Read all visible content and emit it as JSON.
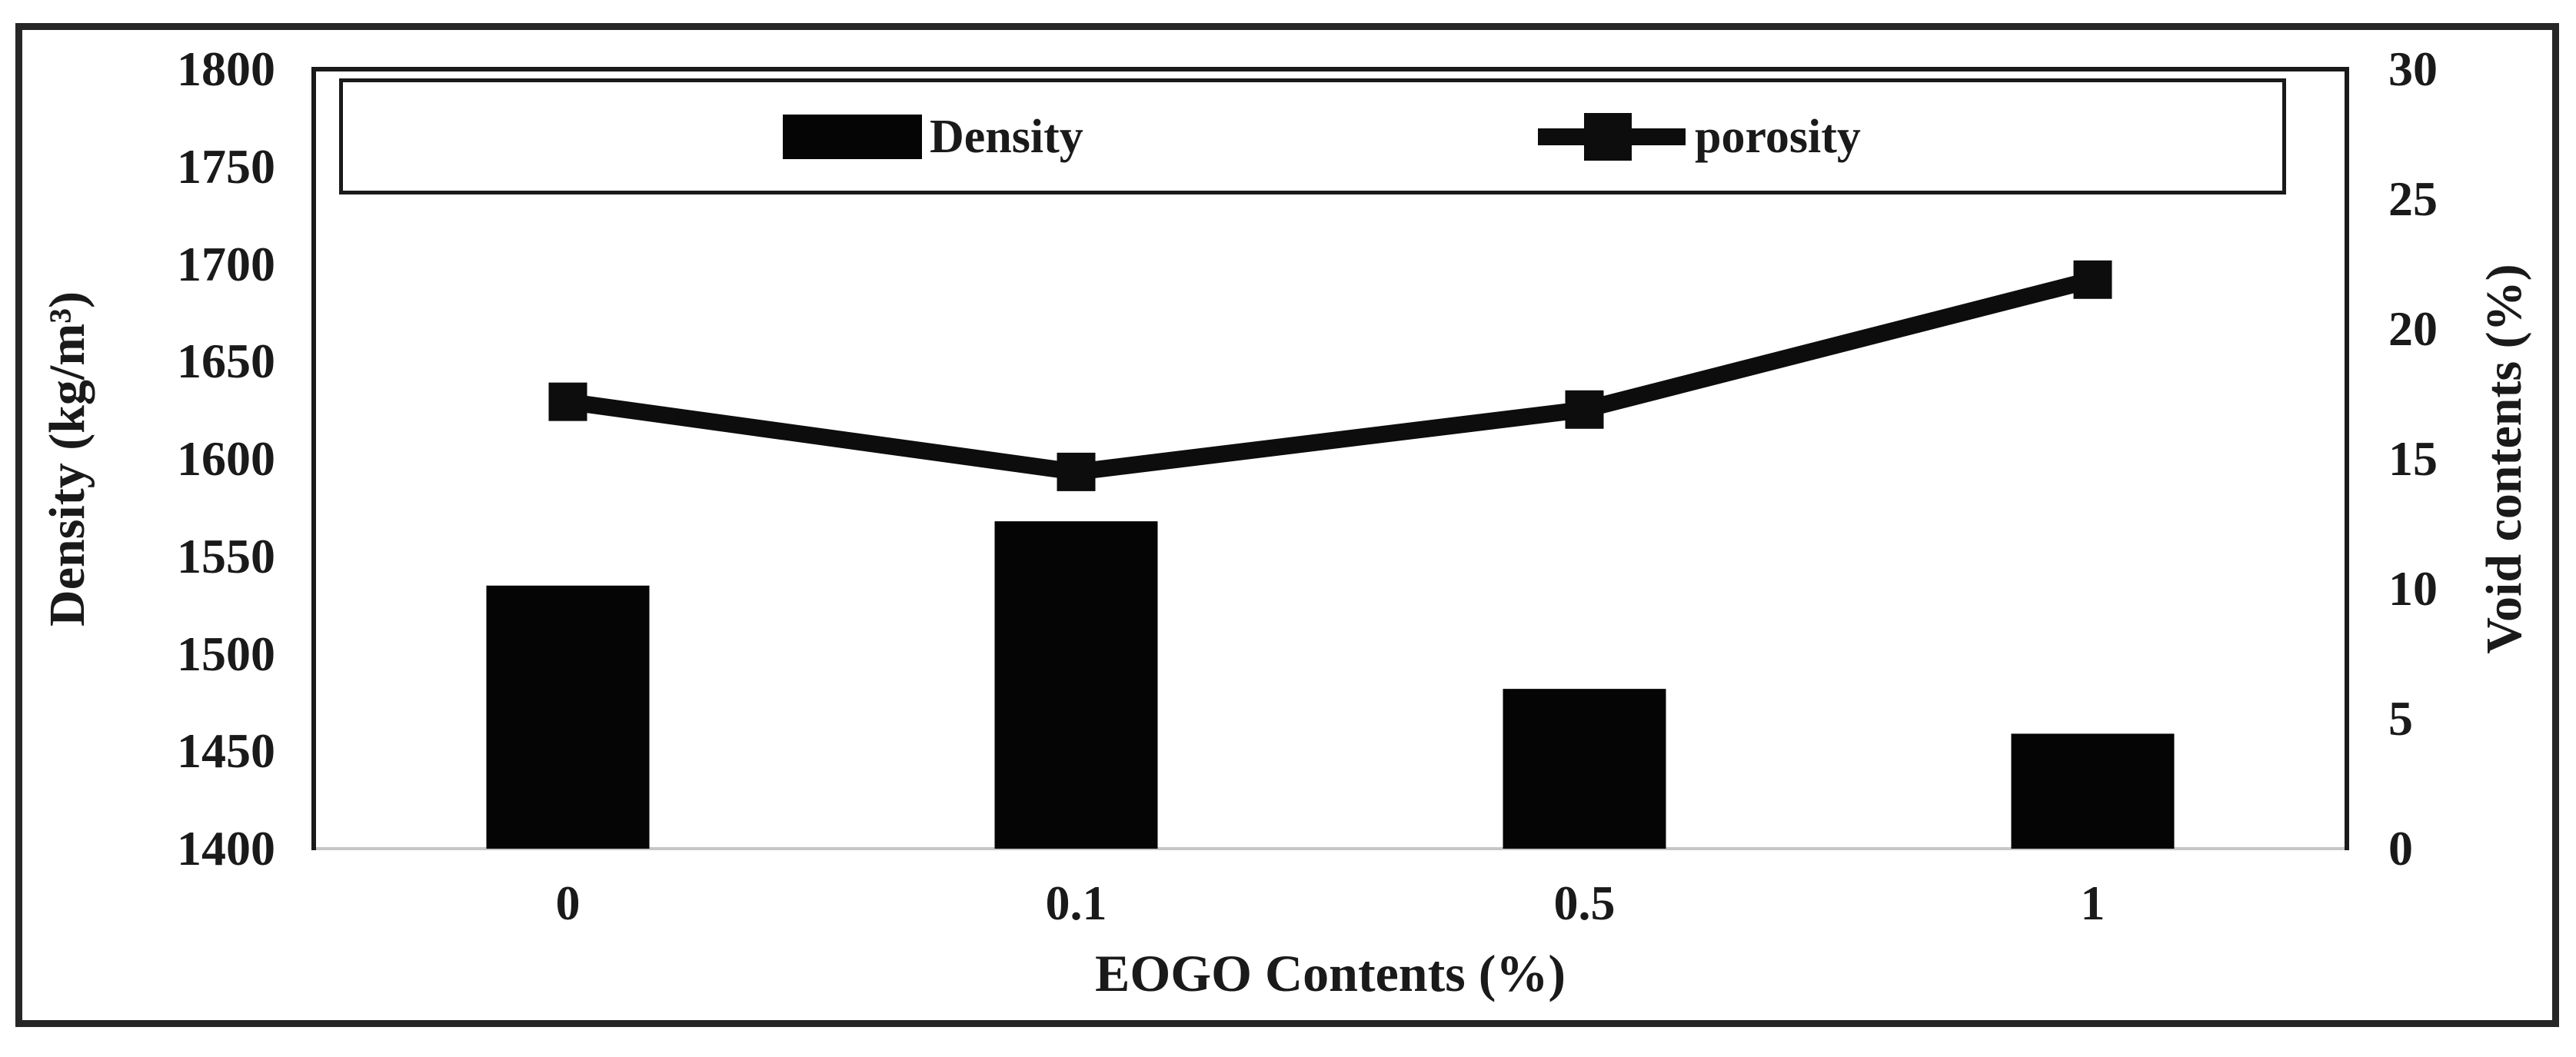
{
  "figure": {
    "background": "#ffffff",
    "border_color": "#262626"
  },
  "axes": {
    "left_title": "Density (kg/m³)",
    "right_title": "Void contents (%)",
    "x_title": "EOGO Contents (%)"
  },
  "legend": {
    "position": "top",
    "items": [
      {
        "label": "Density",
        "icon": "bar-swatch"
      },
      {
        "label": "porosity",
        "icon": "line-square-marker"
      }
    ]
  },
  "chart_data": {
    "type": "dual-axis-bar-line",
    "title": "",
    "categories": [
      "0",
      "0.1",
      "0.5",
      "1"
    ],
    "series": [
      {
        "name": "Density",
        "type": "bar",
        "axis": "left",
        "values": [
          1535,
          1568,
          1482,
          1459
        ],
        "color": "#050505"
      },
      {
        "name": "porosity",
        "type": "line",
        "axis": "right",
        "values": [
          17.2,
          14.5,
          16.9,
          21.9
        ],
        "color": "#0d0d0d",
        "marker": "square"
      }
    ],
    "left_axis": {
      "label": "Density (kg/m³)",
      "min": 1400,
      "max": 1800,
      "step": 50,
      "tick_labels": [
        "1400",
        "1450",
        "1500",
        "1550",
        "1600",
        "1650",
        "1700",
        "1750",
        "1800"
      ]
    },
    "right_axis": {
      "label": "Void contents (%)",
      "min": 0,
      "max": 30,
      "step": 5,
      "tick_labels": [
        "0",
        "5",
        "10",
        "15",
        "20",
        "25",
        "30"
      ]
    },
    "x_axis": {
      "label": "EOGO Contents (%)",
      "tick_labels": [
        "0",
        "0.1",
        "0.5",
        "1"
      ]
    },
    "grid": false,
    "baseline_color": "#c6c6c6",
    "axis_line_color": "#1a1a1a"
  }
}
